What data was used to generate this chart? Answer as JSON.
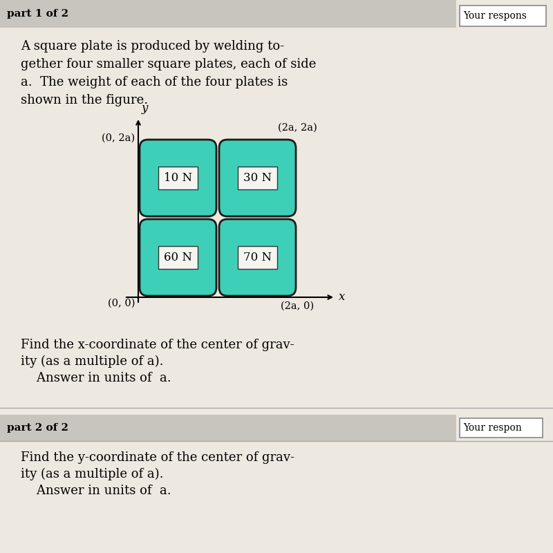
{
  "background_color": "#ede8e0",
  "header_bg": "#c8c5bf",
  "header_text": "part 1 of 2",
  "body_text_lines": [
    "A square plate is produced by welding to-",
    "gether four smaller square plates, each of side",
    "a.  The weight of each of the four plates is",
    "shown in the figure."
  ],
  "part2_header": "part 2 of 2",
  "part2_lines": [
    "Find the y-coordinate of the center of grav-",
    "ity (as a multiple of a).",
    "    Answer in units of  a."
  ],
  "find_lines": [
    "Find the x-coordinate of the center of grav-",
    "ity (as a multiple of a).",
    "    Answer in units of  a."
  ],
  "plate_color": "#3ecfb8",
  "plate_border_color": "#1a1a1a",
  "label_box_color": "#f5f5f0",
  "plates": [
    {
      "label": "10 N",
      "col": 0,
      "row": 1
    },
    {
      "label": "30 N",
      "col": 1,
      "row": 1
    },
    {
      "label": "60 N",
      "col": 0,
      "row": 0
    },
    {
      "label": "70 N",
      "col": 1,
      "row": 0
    }
  ],
  "axis_label_x": "x",
  "axis_label_y": "y",
  "your_response_text": "Your respons"
}
